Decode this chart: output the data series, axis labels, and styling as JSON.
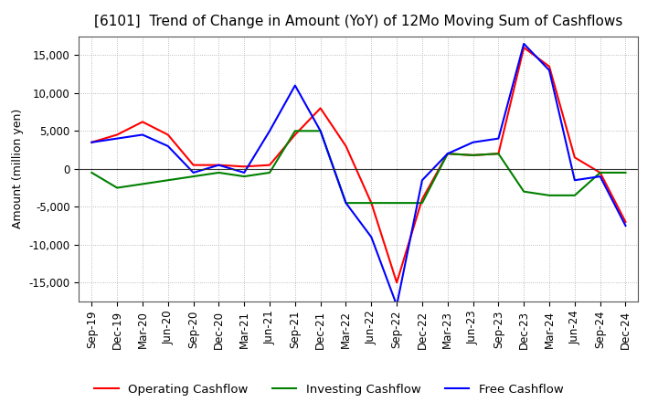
{
  "title": "[6101]  Trend of Change in Amount (YoY) of 12Mo Moving Sum of Cashflows",
  "ylabel": "Amount (million yen)",
  "xlabels": [
    "Sep-19",
    "Dec-19",
    "Mar-20",
    "Jun-20",
    "Sep-20",
    "Dec-20",
    "Mar-21",
    "Jun-21",
    "Sep-21",
    "Dec-21",
    "Mar-22",
    "Jun-22",
    "Sep-22",
    "Dec-22",
    "Mar-23",
    "Jun-23",
    "Sep-23",
    "Dec-23",
    "Mar-24",
    "Jun-24",
    "Sep-24",
    "Dec-24"
  ],
  "operating": [
    3500,
    4500,
    6200,
    4500,
    500,
    500,
    300,
    500,
    4500,
    8000,
    3000,
    -4500,
    -15000,
    -4000,
    2000,
    1800,
    2000,
    16000,
    13500,
    1500,
    -500,
    -7000
  ],
  "investing": [
    -500,
    -2500,
    -2000,
    -1500,
    -1000,
    -500,
    -1000,
    -500,
    5000,
    5000,
    -4500,
    -4500,
    -4500,
    -4500,
    2000,
    1800,
    2000,
    -3000,
    -3500,
    -3500,
    -500,
    -500
  ],
  "free": [
    3500,
    4000,
    4500,
    3000,
    -500,
    500,
    -500,
    5000,
    11000,
    5000,
    -4500,
    -9000,
    -18000,
    -1500,
    2000,
    3500,
    4000,
    16500,
    13000,
    -1500,
    -1000,
    -7500
  ],
  "operating_color": "#ff0000",
  "investing_color": "#008000",
  "free_color": "#0000ff",
  "ylim": [
    -17500,
    17500
  ],
  "yticks": [
    -15000,
    -10000,
    -5000,
    0,
    5000,
    10000,
    15000
  ],
  "background_color": "#ffffff",
  "grid_color": "#aaaaaa",
  "title_fontsize": 11,
  "ylabel_fontsize": 9,
  "tick_fontsize": 8.5,
  "legend_fontsize": 9.5
}
